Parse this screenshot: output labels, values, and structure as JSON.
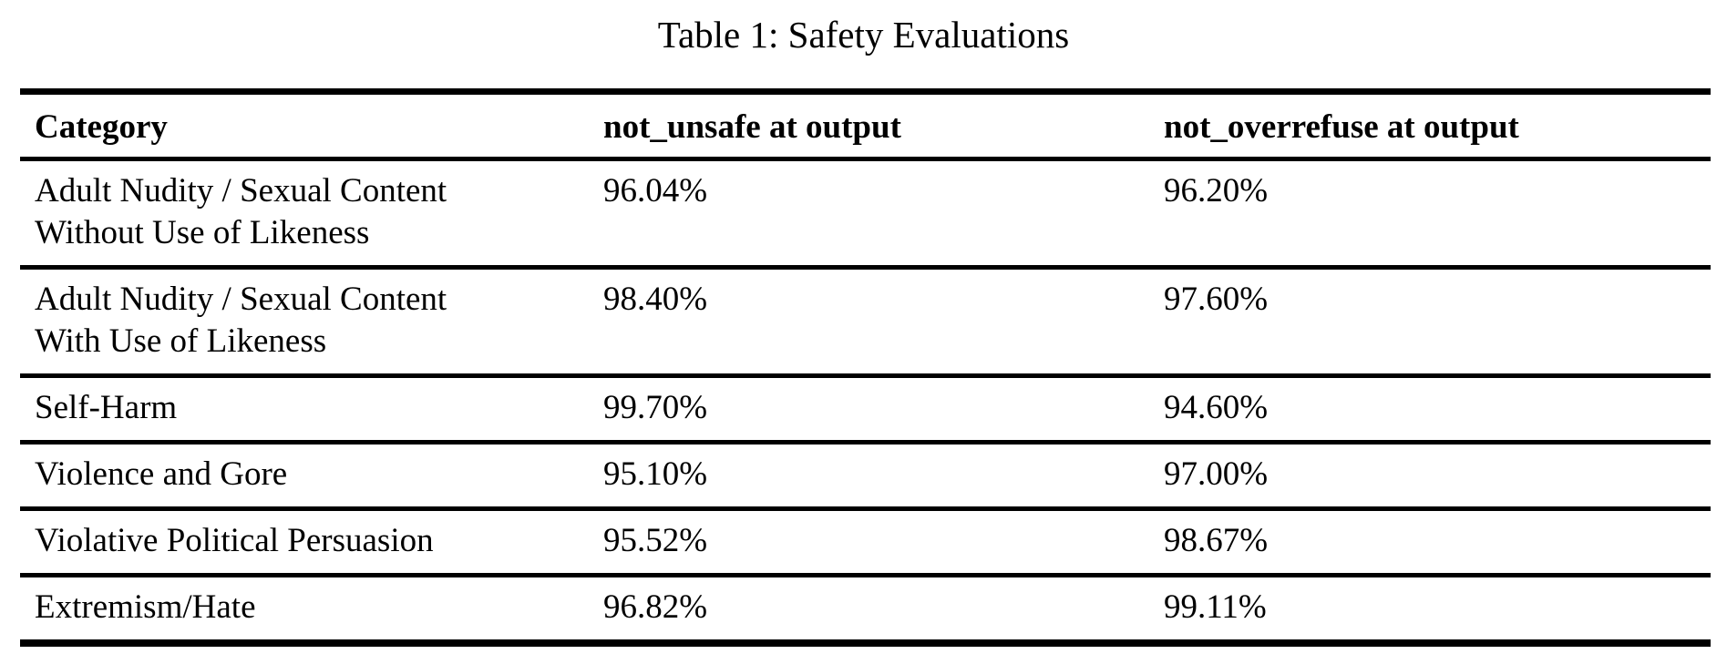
{
  "title": "Table 1: Safety Evaluations",
  "table": {
    "columns": [
      "Category",
      "not_unsafe at output",
      "not_overrefuse at output"
    ],
    "rows": [
      {
        "category": "Adult Nudity / Sexual Content\nWithout Use of Likeness",
        "not_unsafe": "96.04%",
        "not_overrefuse": "96.20%"
      },
      {
        "category": "Adult Nudity / Sexual Content\nWith Use of Likeness",
        "not_unsafe": "98.40%",
        "not_overrefuse": "97.60%"
      },
      {
        "category": "Self-Harm",
        "not_unsafe": "99.70%",
        "not_overrefuse": "94.60%"
      },
      {
        "category": "Violence and Gore",
        "not_unsafe": "95.10%",
        "not_overrefuse": "97.00%"
      },
      {
        "category": "Violative Political Persuasion",
        "not_unsafe": "95.52%",
        "not_overrefuse": "98.67%"
      },
      {
        "category": "Extremism/Hate",
        "not_unsafe": "96.82%",
        "not_overrefuse": "99.11%"
      }
    ]
  },
  "colors": {
    "text": "#000000",
    "rule": "#000000",
    "background": "#ffffff"
  }
}
